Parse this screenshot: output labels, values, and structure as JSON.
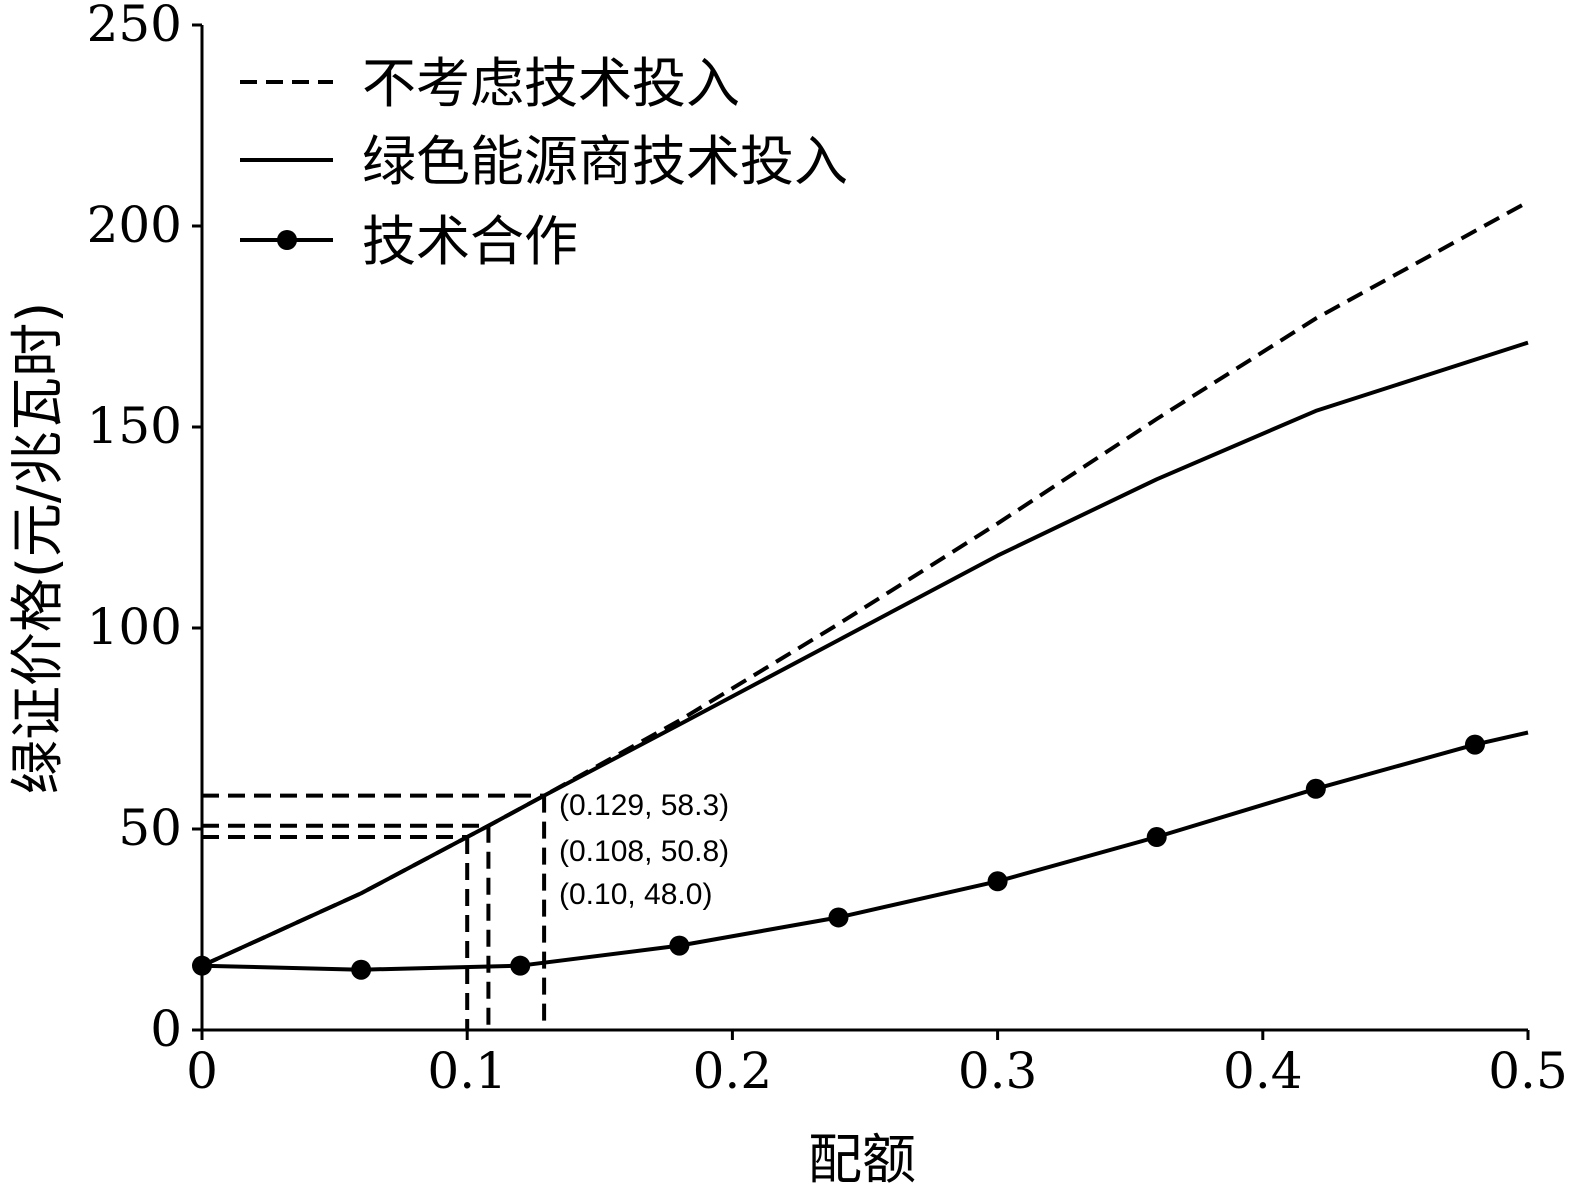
{
  "chart_data": {
    "type": "line",
    "xlabel": "配额",
    "ylabel": "绿证价格(元/兆瓦时)",
    "xlim": [
      0,
      0.5
    ],
    "ylim": [
      0,
      250
    ],
    "x_ticks": [
      "0",
      "0.1",
      "0.2",
      "0.3",
      "0.4",
      "0.5"
    ],
    "y_ticks": [
      "0",
      "50",
      "100",
      "150",
      "200",
      "250"
    ],
    "legend_position": "top-left",
    "series": [
      {
        "name": "不考虑技术投入",
        "style": "dashed",
        "marker": "none",
        "x": [
          0,
          0.06,
          0.1,
          0.108,
          0.129,
          0.18,
          0.24,
          0.3,
          0.36,
          0.42,
          0.5
        ],
        "y": [
          16,
          34,
          48.0,
          50.8,
          58.3,
          77,
          101,
          126,
          152,
          177,
          206
        ]
      },
      {
        "name": "绿色能源商技术投入",
        "style": "solid",
        "marker": "none",
        "x": [
          0,
          0.06,
          0.1,
          0.108,
          0.129,
          0.18,
          0.24,
          0.3,
          0.36,
          0.42,
          0.5
        ],
        "y": [
          16,
          34,
          48.0,
          50.8,
          58.3,
          76,
          97,
          118,
          137,
          154,
          171
        ]
      },
      {
        "name": "技术合作",
        "style": "solid",
        "marker": "circle",
        "x": [
          0,
          0.06,
          0.12,
          0.18,
          0.24,
          0.3,
          0.36,
          0.42,
          0.48,
          0.5
        ],
        "y": [
          16,
          15,
          16,
          21,
          28,
          37,
          48,
          60,
          71,
          74
        ],
        "marker_x": [
          0,
          0.06,
          0.12,
          0.18,
          0.24,
          0.3,
          0.36,
          0.42,
          0.48
        ],
        "marker_y": [
          16,
          15,
          16,
          21,
          28,
          37,
          48,
          60,
          71
        ]
      }
    ],
    "annotations": [
      {
        "text": "(0.129, 58.3)",
        "x": 0.129,
        "y": 58.3
      },
      {
        "text": "(0.108, 50.8)",
        "x": 0.108,
        "y": 50.8
      },
      {
        "text": "(0.10, 48.0)",
        "x": 0.1,
        "y": 48.0
      }
    ]
  }
}
